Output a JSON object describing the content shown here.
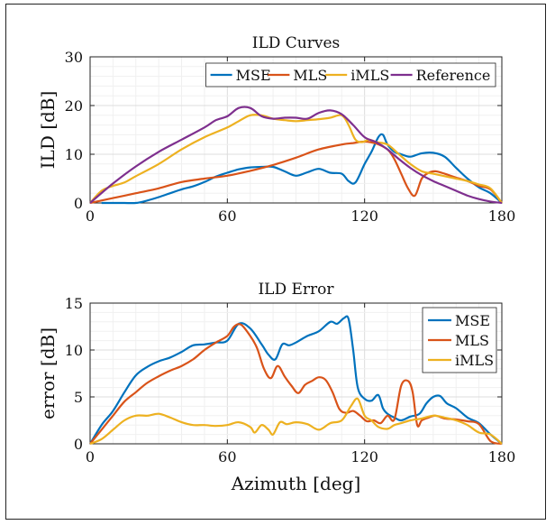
{
  "chart_data": [
    {
      "type": "line",
      "title": "ILD Curves",
      "xlabel": "",
      "ylabel": "ILD [dB]",
      "xlim": [
        0,
        180
      ],
      "ylim": [
        0,
        30
      ],
      "xticks": [
        "0",
        "60",
        "120",
        "180"
      ],
      "yticks": [
        "0",
        "10",
        "20",
        "30"
      ],
      "grid": "on",
      "legend": "top, horizontal",
      "series": [
        {
          "name": "MSE",
          "color": "#0072BD",
          "x": [
            5,
            10,
            15,
            20,
            25,
            30,
            35,
            40,
            45,
            50,
            55,
            60,
            65,
            70,
            75,
            80,
            85,
            90,
            95,
            100,
            105,
            110,
            113,
            116,
            120,
            123,
            126,
            128,
            130,
            133,
            136,
            140,
            145,
            150,
            155,
            160,
            165,
            170,
            175,
            180
          ],
          "y": [
            0,
            0,
            0,
            0,
            0.5,
            1.2,
            2,
            2.8,
            3.4,
            4.3,
            5.4,
            6.2,
            6.9,
            7.3,
            7.4,
            7.4,
            6.5,
            5.6,
            6.3,
            7,
            6.2,
            6,
            4.5,
            4.2,
            8,
            10.5,
            13.5,
            14,
            12,
            10.5,
            10,
            9.5,
            10.2,
            10.3,
            9.5,
            7.2,
            5,
            3.2,
            2,
            0
          ]
        },
        {
          "name": "MLS",
          "color": "#D95319",
          "x": [
            0,
            10,
            20,
            30,
            40,
            50,
            60,
            70,
            80,
            90,
            100,
            110,
            115,
            120,
            125,
            130,
            133,
            136,
            139,
            142,
            145,
            148,
            151,
            155,
            160,
            165,
            170,
            175,
            180
          ],
          "y": [
            0,
            1,
            2,
            3,
            4.3,
            5,
            5.6,
            6.6,
            7.8,
            9.3,
            11,
            12,
            12.3,
            12.6,
            12.2,
            11,
            9,
            6,
            3,
            1.5,
            5,
            6.2,
            6.5,
            6,
            5.2,
            4.5,
            3.5,
            2.8,
            0
          ]
        },
        {
          "name": "iMLS",
          "color": "#EDB120",
          "x": [
            0,
            5,
            10,
            15,
            20,
            30,
            40,
            50,
            60,
            65,
            70,
            75,
            80,
            85,
            90,
            95,
            100,
            105,
            110,
            113,
            116,
            119,
            122,
            125,
            130,
            135,
            140,
            145,
            150,
            155,
            160,
            165,
            170,
            175,
            180
          ],
          "y": [
            0,
            2.5,
            3.5,
            4.2,
            5.5,
            8,
            11,
            13.5,
            15.5,
            16.8,
            18,
            18,
            17.3,
            17,
            16.8,
            17,
            17.2,
            17.5,
            18,
            16,
            13,
            12.5,
            13,
            12.5,
            12,
            10,
            8,
            6.5,
            6,
            5.5,
            5,
            4.5,
            3.8,
            3,
            0
          ]
        },
        {
          "name": "Reference",
          "color": "#7E2F8E",
          "x": [
            0,
            10,
            20,
            30,
            40,
            50,
            55,
            60,
            65,
            70,
            75,
            80,
            85,
            90,
            95,
            100,
            105,
            110,
            115,
            120,
            125,
            130,
            135,
            140,
            145,
            150,
            155,
            160,
            165,
            170,
            175,
            180
          ],
          "y": [
            0,
            4,
            7.5,
            10.5,
            13,
            15.5,
            17,
            17.8,
            19.5,
            19.5,
            17.8,
            17.3,
            17.5,
            17.5,
            17.3,
            18.5,
            19,
            18.2,
            16,
            13.5,
            12.5,
            11,
            9,
            7.2,
            5.7,
            4.5,
            3.5,
            2.5,
            1.5,
            0.8,
            0.3,
            0
          ]
        }
      ]
    },
    {
      "type": "line",
      "title": "ILD Error",
      "xlabel": "Azimuth [deg]",
      "ylabel": "error [dB]",
      "xlim": [
        0,
        180
      ],
      "ylim": [
        0,
        15
      ],
      "xticks": [
        "0",
        "60",
        "120",
        "180"
      ],
      "yticks": [
        "0",
        "5",
        "10",
        "15"
      ],
      "grid": "on",
      "legend": "top-right",
      "series": [
        {
          "name": "MSE",
          "color": "#0072BD",
          "x": [
            0,
            5,
            10,
            15,
            20,
            25,
            30,
            35,
            40,
            45,
            50,
            55,
            60,
            65,
            70,
            75,
            78,
            81,
            84,
            87,
            90,
            95,
            100,
            105,
            108,
            111,
            113,
            115,
            117,
            120,
            123,
            126,
            128,
            130,
            133,
            136,
            140,
            144,
            147,
            150,
            153,
            156,
            160,
            165,
            170,
            175,
            180
          ],
          "y": [
            0,
            2,
            3.5,
            5.5,
            7.3,
            8.2,
            8.8,
            9.2,
            9.8,
            10.5,
            10.6,
            10.8,
            11,
            12.8,
            12.3,
            10.6,
            9.5,
            9,
            10.6,
            10.5,
            10.8,
            11.5,
            12,
            13,
            12.8,
            13.4,
            13.3,
            10,
            6,
            4.8,
            4.6,
            5.2,
            3.8,
            3.2,
            2.8,
            2.5,
            2.9,
            3.2,
            4.3,
            5,
            5.1,
            4.3,
            3.8,
            2.8,
            2.2,
            1,
            0
          ]
        },
        {
          "name": "MLS",
          "color": "#D95319",
          "x": [
            0,
            5,
            10,
            15,
            20,
            25,
            30,
            35,
            40,
            45,
            50,
            55,
            60,
            63,
            66,
            70,
            73,
            76,
            79,
            82,
            85,
            88,
            91,
            94,
            97,
            100,
            103,
            106,
            109,
            112,
            115,
            118,
            121,
            124,
            127,
            130,
            133,
            136,
            139,
            141,
            143,
            145,
            148,
            151,
            155,
            160,
            165,
            170,
            175,
            180
          ],
          "y": [
            0,
            1.5,
            3,
            4.5,
            5.5,
            6.5,
            7.2,
            7.8,
            8.3,
            9,
            10,
            10.8,
            11.5,
            12.5,
            12.7,
            11.5,
            10.2,
            8,
            7,
            8.3,
            7.2,
            6.2,
            5.4,
            6.3,
            6.7,
            7.1,
            6.8,
            5.5,
            3.7,
            3.3,
            3.5,
            3,
            2.4,
            2.5,
            2.2,
            3,
            2.6,
            6.2,
            6.7,
            5.5,
            2,
            2.5,
            2.8,
            3,
            2.7,
            2.6,
            2.4,
            2.1,
            0.3,
            0
          ]
        },
        {
          "name": "iMLS",
          "color": "#EDB120",
          "x": [
            0,
            5,
            10,
            15,
            20,
            25,
            30,
            35,
            40,
            45,
            50,
            55,
            60,
            65,
            70,
            72,
            75,
            78,
            80,
            83,
            86,
            90,
            95,
            100,
            105,
            110,
            114,
            117,
            120,
            123,
            126,
            130,
            133,
            136,
            140,
            145,
            150,
            155,
            160,
            165,
            170,
            175,
            180
          ],
          "y": [
            0,
            0.5,
            1.5,
            2.5,
            3,
            3,
            3.2,
            2.8,
            2.3,
            2,
            2,
            1.9,
            2,
            2.3,
            1.8,
            1.2,
            2,
            1.5,
            1,
            2.3,
            2.1,
            2.3,
            2.1,
            1.5,
            2.2,
            2.5,
            4,
            4.8,
            3,
            2.5,
            1.8,
            1.6,
            2,
            2.2,
            2.5,
            2.7,
            3,
            2.8,
            2.5,
            2,
            1.2,
            1,
            0
          ]
        }
      ]
    }
  ]
}
